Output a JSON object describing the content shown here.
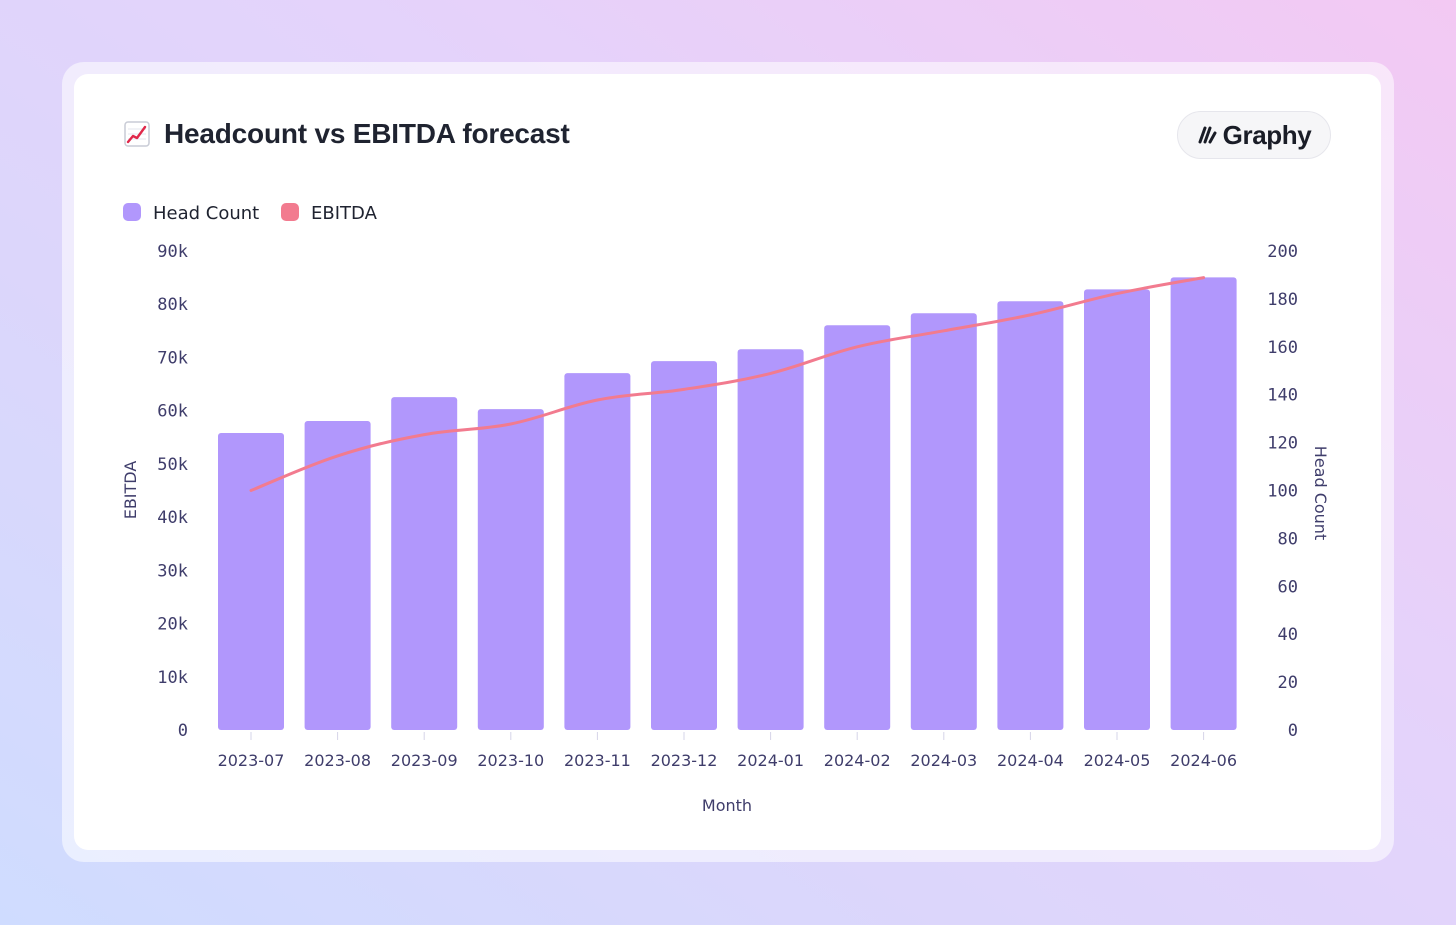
{
  "colors": {
    "bar": "#b197fc",
    "line": "#f27b8f",
    "text": "#3f3d6b"
  },
  "header": {
    "title": "Headcount vs EBITDA forecast",
    "icon": "chart-increasing-icon",
    "brand_label": "Graphy",
    "brand_icon": "graphy-logo-icon"
  },
  "chart_data": {
    "type": "bar",
    "title": "Headcount vs EBITDA forecast",
    "xlabel": "Month",
    "categories": [
      "2023-07",
      "2023-08",
      "2023-09",
      "2023-10",
      "2023-11",
      "2023-12",
      "2024-01",
      "2024-02",
      "2024-03",
      "2024-04",
      "2024-05",
      "2024-06"
    ],
    "legend": [
      {
        "name": "Head Count",
        "color": "#b197fc"
      },
      {
        "name": "EBITDA",
        "color": "#f27b8f"
      }
    ],
    "series": [
      {
        "name": "Head Count",
        "type": "bar",
        "axis": "right",
        "values": [
          124,
          129,
          139,
          134,
          149,
          154,
          159,
          169,
          174,
          179,
          184,
          189
        ]
      },
      {
        "name": "EBITDA",
        "type": "line",
        "axis": "left",
        "values": [
          45000,
          51500,
          55500,
          57500,
          62000,
          64000,
          67000,
          72000,
          75000,
          78000,
          82000,
          85000
        ]
      }
    ],
    "y_left": {
      "label": "EBITDA",
      "range": [
        0,
        90000
      ],
      "ticks": [
        "0",
        "10k",
        "20k",
        "30k",
        "40k",
        "50k",
        "60k",
        "70k",
        "80k",
        "90k"
      ]
    },
    "y_right": {
      "label": "Head Count",
      "range": [
        0,
        200
      ],
      "ticks": [
        "0",
        "20",
        "40",
        "60",
        "80",
        "100",
        "120",
        "140",
        "160",
        "180",
        "200"
      ]
    }
  }
}
